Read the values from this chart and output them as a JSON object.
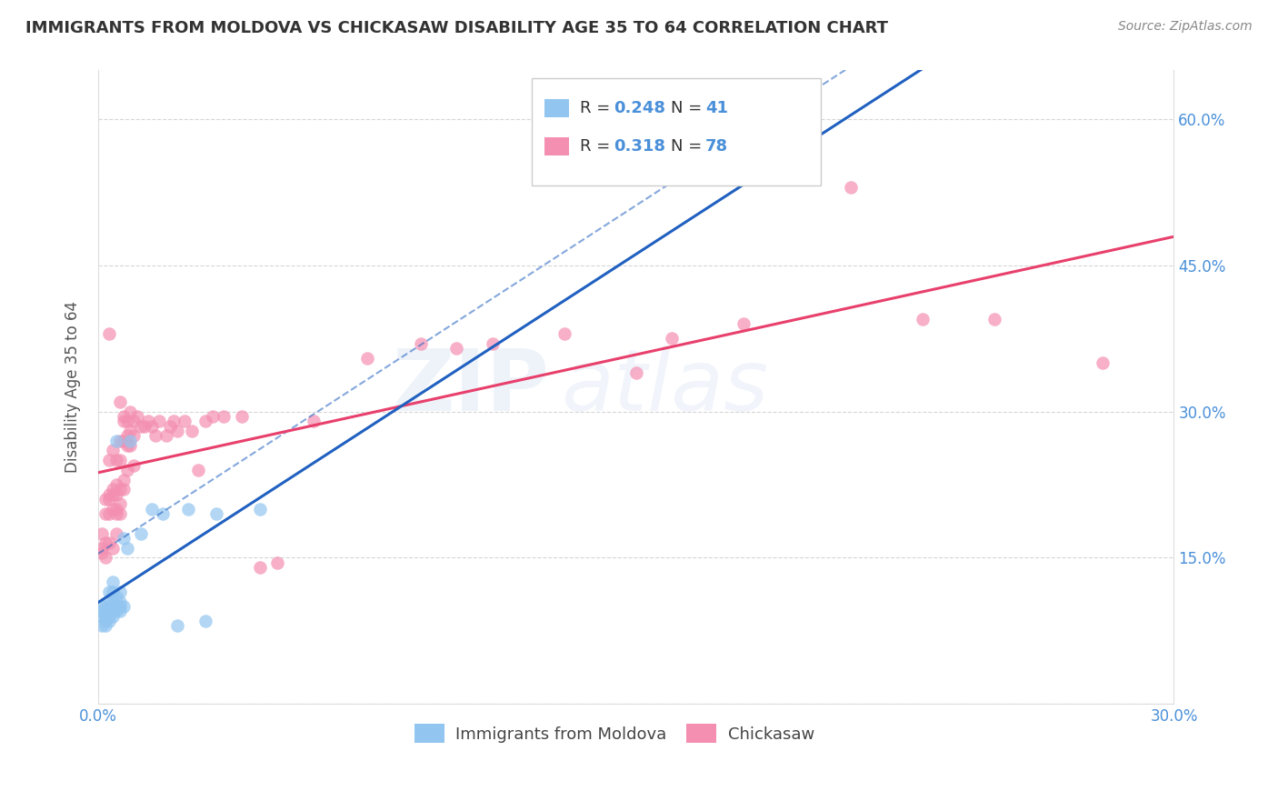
{
  "title": "IMMIGRANTS FROM MOLDOVA VS CHICKASAW DISABILITY AGE 35 TO 64 CORRELATION CHART",
  "source": "Source: ZipAtlas.com",
  "ylabel": "Disability Age 35 to 64",
  "xlim": [
    0.0,
    0.3
  ],
  "ylim": [
    0.0,
    0.65
  ],
  "xticks": [
    0.0,
    0.05,
    0.1,
    0.15,
    0.2,
    0.25,
    0.3
  ],
  "xticklabels": [
    "0.0%",
    "",
    "",
    "",
    "",
    "",
    "30.0%"
  ],
  "yticks": [
    0.0,
    0.15,
    0.3,
    0.45,
    0.6
  ],
  "yticklabels": [
    "",
    "15.0%",
    "30.0%",
    "45.0%",
    "60.0%"
  ],
  "legend_R1": "0.248",
  "legend_N1": "41",
  "legend_R2": "0.318",
  "legend_N2": "78",
  "legend_label1": "Immigrants from Moldova",
  "legend_label2": "Chickasaw",
  "color_moldova": "#92C5F0",
  "color_chickasaw": "#F48FB1",
  "color_line_moldova": "#2060C0",
  "color_line_chickasaw": "#E8406C",
  "color_axis_labels": "#4A90D9",
  "color_title": "#333333",
  "watermark_zip": "ZIP",
  "watermark_atlas": "atlas",
  "moldova_x": [
    0.001,
    0.001,
    0.001,
    0.001,
    0.002,
    0.002,
    0.002,
    0.002,
    0.002,
    0.003,
    0.003,
    0.003,
    0.003,
    0.003,
    0.003,
    0.004,
    0.004,
    0.004,
    0.004,
    0.004,
    0.004,
    0.005,
    0.005,
    0.005,
    0.005,
    0.006,
    0.006,
    0.006,
    0.006,
    0.007,
    0.007,
    0.008,
    0.009,
    0.012,
    0.015,
    0.018,
    0.022,
    0.025,
    0.03,
    0.033,
    0.045
  ],
  "moldova_y": [
    0.08,
    0.09,
    0.095,
    0.1,
    0.08,
    0.085,
    0.09,
    0.095,
    0.1,
    0.085,
    0.09,
    0.095,
    0.1,
    0.105,
    0.115,
    0.09,
    0.095,
    0.1,
    0.105,
    0.115,
    0.125,
    0.095,
    0.1,
    0.11,
    0.27,
    0.095,
    0.1,
    0.105,
    0.115,
    0.1,
    0.17,
    0.16,
    0.27,
    0.175,
    0.2,
    0.195,
    0.08,
    0.2,
    0.085,
    0.195,
    0.2
  ],
  "chickasaw_x": [
    0.001,
    0.001,
    0.001,
    0.002,
    0.002,
    0.002,
    0.002,
    0.003,
    0.003,
    0.003,
    0.003,
    0.003,
    0.003,
    0.004,
    0.004,
    0.004,
    0.004,
    0.004,
    0.005,
    0.005,
    0.005,
    0.005,
    0.005,
    0.005,
    0.006,
    0.006,
    0.006,
    0.006,
    0.006,
    0.006,
    0.007,
    0.007,
    0.007,
    0.007,
    0.007,
    0.008,
    0.008,
    0.008,
    0.008,
    0.009,
    0.009,
    0.009,
    0.01,
    0.01,
    0.01,
    0.011,
    0.012,
    0.013,
    0.014,
    0.015,
    0.016,
    0.017,
    0.019,
    0.02,
    0.021,
    0.022,
    0.024,
    0.026,
    0.028,
    0.03,
    0.032,
    0.035,
    0.04,
    0.045,
    0.05,
    0.06,
    0.075,
    0.09,
    0.1,
    0.11,
    0.13,
    0.15,
    0.16,
    0.18,
    0.21,
    0.23,
    0.25,
    0.28
  ],
  "chickasaw_y": [
    0.155,
    0.16,
    0.175,
    0.15,
    0.165,
    0.195,
    0.21,
    0.165,
    0.195,
    0.21,
    0.215,
    0.25,
    0.38,
    0.16,
    0.2,
    0.215,
    0.22,
    0.26,
    0.175,
    0.195,
    0.2,
    0.215,
    0.225,
    0.25,
    0.195,
    0.205,
    0.22,
    0.25,
    0.27,
    0.31,
    0.22,
    0.23,
    0.27,
    0.29,
    0.295,
    0.24,
    0.265,
    0.275,
    0.29,
    0.265,
    0.28,
    0.3,
    0.245,
    0.275,
    0.29,
    0.295,
    0.285,
    0.285,
    0.29,
    0.285,
    0.275,
    0.29,
    0.275,
    0.285,
    0.29,
    0.28,
    0.29,
    0.28,
    0.24,
    0.29,
    0.295,
    0.295,
    0.295,
    0.14,
    0.145,
    0.29,
    0.355,
    0.37,
    0.365,
    0.37,
    0.38,
    0.34,
    0.375,
    0.39,
    0.53,
    0.395,
    0.395,
    0.35
  ]
}
